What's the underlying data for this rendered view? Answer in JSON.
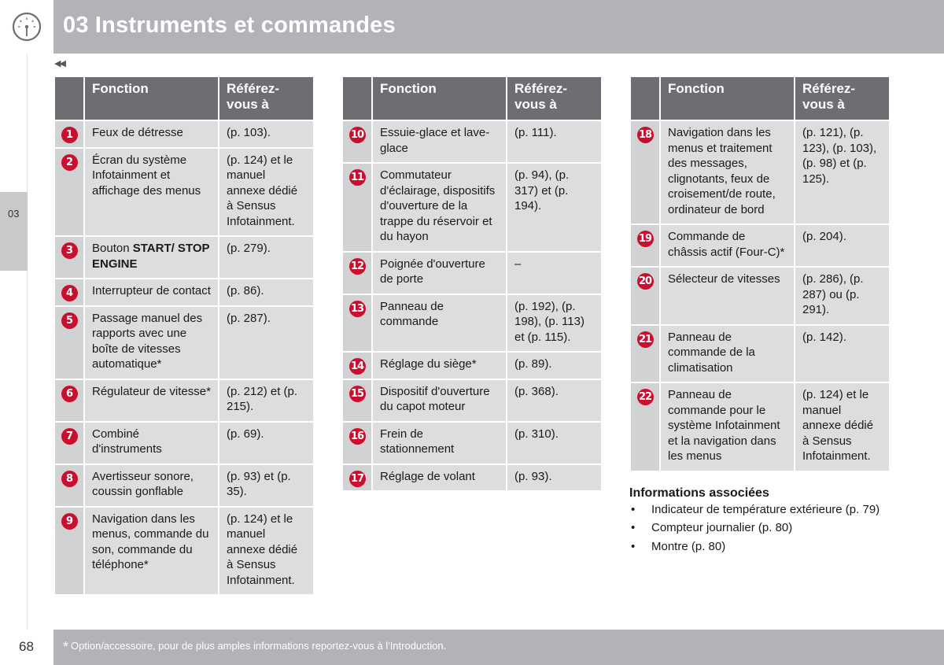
{
  "header": {
    "title": "03 Instruments et commandes"
  },
  "nav": {
    "back_symbol": "◀◀"
  },
  "side_tab": {
    "label": "03"
  },
  "table_headers": {
    "function": "Fonction",
    "reference": "Référez-vous à"
  },
  "tables": [
    {
      "rows": [
        {
          "num": "1",
          "function": "Feux de détresse",
          "reference": "(p. 103)."
        },
        {
          "num": "2",
          "function": "Écran du système Infotainment et affichage des menus",
          "reference": "(p. 124) et le manuel annexe dédié à Sensus Infotainment."
        },
        {
          "num": "3",
          "function_prefix": "Bouton ",
          "function_bold": "START/ STOP ENGINE",
          "reference": "(p. 279)."
        },
        {
          "num": "4",
          "function": "Interrupteur de contact",
          "reference": "(p. 86)."
        },
        {
          "num": "5",
          "function": "Passage manuel des rapports avec une boîte de vitesses automatique*",
          "reference": "(p. 287)."
        },
        {
          "num": "6",
          "function": "Régulateur de vitesse*",
          "reference": "(p. 212) et (p. 215)."
        },
        {
          "num": "7",
          "function": "Combiné d'instruments",
          "reference": "(p. 69)."
        },
        {
          "num": "8",
          "function": "Avertisseur sonore, coussin gonflable",
          "reference": "(p. 93) et (p. 35)."
        },
        {
          "num": "9",
          "function": "Navigation dans les menus, commande du son, commande du téléphone*",
          "reference": "(p. 124) et le manuel annexe dédié à Sensus Infotainment."
        }
      ]
    },
    {
      "rows": [
        {
          "num": "10",
          "function": "Essuie-glace et lave-glace",
          "reference": "(p. 111)."
        },
        {
          "num": "11",
          "function": "Commutateur d'éclairage, dispositifs d'ouverture de la trappe du réservoir et du hayon",
          "reference": "(p. 94), (p. 317) et (p. 194)."
        },
        {
          "num": "12",
          "function": "Poignée d'ouverture de porte",
          "reference": "–"
        },
        {
          "num": "13",
          "function": "Panneau de commande",
          "reference": "(p. 192), (p. 198), (p. 113) et (p. 115)."
        },
        {
          "num": "14",
          "function": "Réglage du siège*",
          "reference": "(p. 89)."
        },
        {
          "num": "15",
          "function": "Dispositif d'ouverture du capot moteur",
          "reference": "(p. 368)."
        },
        {
          "num": "16",
          "function": "Frein de stationnement",
          "reference": "(p. 310)."
        },
        {
          "num": "17",
          "function": "Réglage de volant",
          "reference": "(p. 93)."
        }
      ]
    },
    {
      "rows": [
        {
          "num": "18",
          "function": "Navigation dans les menus et traitement des messages, clignotants, feux de croisement/de route, ordinateur de bord",
          "reference": "(p. 121), (p. 123), (p. 103), (p. 98) et (p. 125)."
        },
        {
          "num": "19",
          "function": "Commande de châssis actif (Four-C)*",
          "reference": "(p. 204)."
        },
        {
          "num": "20",
          "function": "Sélecteur de vitesses",
          "reference": "(p. 286), (p. 287) ou (p. 291)."
        },
        {
          "num": "21",
          "function": "Panneau de commande de la climatisation",
          "reference": "(p. 142)."
        },
        {
          "num": "22",
          "function": "Panneau de commande pour le système Infotainment et la navigation dans les menus",
          "reference": "(p. 124) et le manuel annexe dédié à Sensus Infotainment."
        }
      ]
    }
  ],
  "related": {
    "title": "Informations associées",
    "bullet": "•",
    "items": [
      "Indicateur de température extérieure (p. 79)",
      "Compteur journalier (p. 80)",
      "Montre (p. 80)"
    ]
  },
  "footer": {
    "page_number": "68",
    "footnote_star": "*",
    "footnote_text": "Option/accessoire, pour de plus amples informations reportez-vous à l'Introduction."
  },
  "colors": {
    "header_gray": "#b1b3b6",
    "table_header": "#6d6e71",
    "cell_bg": "#dcddde",
    "badge_red": "#c8102e"
  }
}
